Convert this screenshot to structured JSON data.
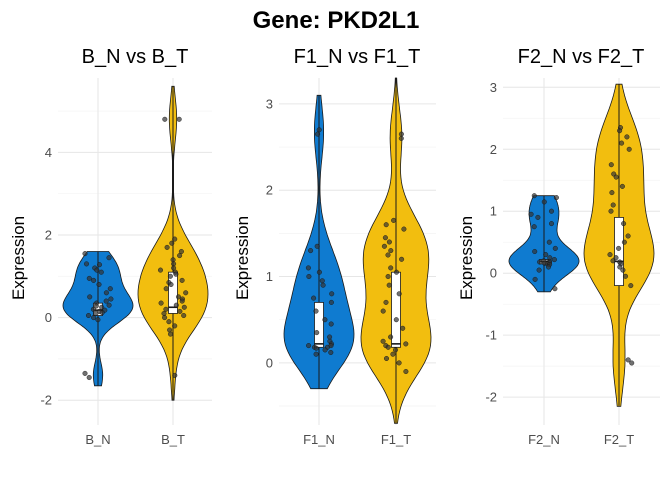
{
  "title": "Gene: PKD2L1",
  "colors": {
    "N": "#0F7BD0",
    "T": "#F2BE0F"
  },
  "chart_data": [
    {
      "type": "violin",
      "title": "B_N vs B_T",
      "xlabel": "",
      "ylabel": "Expression",
      "ylim": [
        -2.6,
        5.8
      ],
      "yticks": [
        -2,
        0,
        2,
        4
      ],
      "grid": true,
      "categories": [
        "B_N",
        "B_T"
      ],
      "series": [
        {
          "name": "B_N",
          "color_key": "N",
          "min": -1.65,
          "q1": 0.05,
          "median": 0.18,
          "q3": 0.35,
          "max": 1.6,
          "points": [
            1.55,
            1.45,
            1.3,
            1.28,
            1.2,
            1.15,
            1.1,
            0.95,
            0.9,
            0.8,
            0.7,
            0.6,
            0.5,
            0.45,
            0.4,
            0.35,
            0.3,
            0.28,
            0.25,
            0.2,
            0.18,
            0.15,
            0.12,
            0.1,
            0.05,
            0.0,
            -0.05,
            -1.35,
            -1.45
          ]
        },
        {
          "name": "B_T",
          "color_key": "T",
          "min": -2.0,
          "q1": 0.1,
          "median": 0.25,
          "q3": 1.1,
          "max": 5.6,
          "points": [
            4.8,
            4.8,
            1.9,
            1.8,
            1.7,
            1.6,
            1.5,
            1.4,
            1.3,
            1.2,
            1.15,
            1.1,
            1.05,
            1.0,
            0.9,
            0.85,
            0.8,
            0.7,
            0.6,
            0.5,
            0.45,
            0.4,
            0.35,
            0.3,
            0.25,
            0.2,
            0.15,
            0.1,
            0.05,
            0.0,
            -0.1,
            -0.2,
            -0.3,
            -0.4,
            -1.4
          ]
        }
      ]
    },
    {
      "type": "violin",
      "title": "F1_N vs F1_T",
      "xlabel": "",
      "ylabel": "Expression",
      "ylim": [
        -0.72,
        3.3
      ],
      "yticks": [
        0,
        1,
        2,
        3
      ],
      "grid": true,
      "categories": [
        "F1_N",
        "F1_T"
      ],
      "series": [
        {
          "name": "F1_N",
          "color_key": "N",
          "min": -0.3,
          "q1": 0.18,
          "median": 0.22,
          "q3": 0.7,
          "max": 3.1,
          "points": [
            2.7,
            2.65,
            1.35,
            1.3,
            1.1,
            1.05,
            1.0,
            0.95,
            0.9,
            0.8,
            0.75,
            0.7,
            0.6,
            0.5,
            0.45,
            0.35,
            0.3,
            0.25,
            0.22,
            0.2,
            0.2,
            0.18,
            0.18,
            0.17,
            0.15,
            0.12,
            0.1
          ]
        },
        {
          "name": "F1_T",
          "color_key": "T",
          "min": -0.7,
          "q1": 0.18,
          "median": 0.22,
          "q3": 1.05,
          "max": 3.3,
          "points": [
            2.65,
            2.6,
            1.65,
            1.6,
            1.55,
            1.45,
            1.4,
            1.35,
            1.3,
            1.25,
            1.2,
            1.1,
            1.05,
            1.0,
            0.9,
            0.8,
            0.7,
            0.6,
            0.5,
            0.4,
            0.3,
            0.25,
            0.22,
            0.2,
            0.18,
            0.15,
            0.1,
            0.05,
            0.0,
            -0.1
          ]
        }
      ]
    },
    {
      "type": "violin",
      "title": "F2_N vs F2_T",
      "xlabel": "",
      "ylabel": "Expression",
      "ylim": [
        -2.45,
        3.15
      ],
      "yticks": [
        -2,
        -1,
        0,
        1,
        2,
        3
      ],
      "grid": true,
      "categories": [
        "F2_N",
        "F2_T"
      ],
      "series": [
        {
          "name": "F2_N",
          "color_key": "N",
          "min": -0.3,
          "q1": 0.15,
          "median": 0.19,
          "q3": 0.22,
          "max": 1.25,
          "points": [
            1.25,
            1.22,
            1.15,
            1.0,
            0.95,
            0.9,
            0.8,
            0.75,
            0.5,
            0.4,
            0.35,
            0.3,
            0.25,
            0.22,
            0.2,
            0.19,
            0.18,
            0.17,
            0.16,
            0.15,
            0.14,
            0.1,
            0.05,
            -0.1,
            -0.25
          ]
        },
        {
          "name": "F2_T",
          "color_key": "T",
          "min": -2.15,
          "q1": -0.2,
          "median": 0.19,
          "q3": 0.9,
          "max": 3.05,
          "points": [
            2.35,
            2.3,
            2.2,
            2.1,
            2.0,
            1.75,
            1.6,
            1.55,
            1.4,
            1.3,
            1.1,
            1.0,
            0.8,
            0.6,
            0.5,
            0.4,
            0.3,
            0.25,
            0.2,
            0.18,
            0.15,
            0.1,
            0.05,
            -0.05,
            -0.2,
            -1.4,
            -1.45
          ]
        }
      ]
    }
  ]
}
